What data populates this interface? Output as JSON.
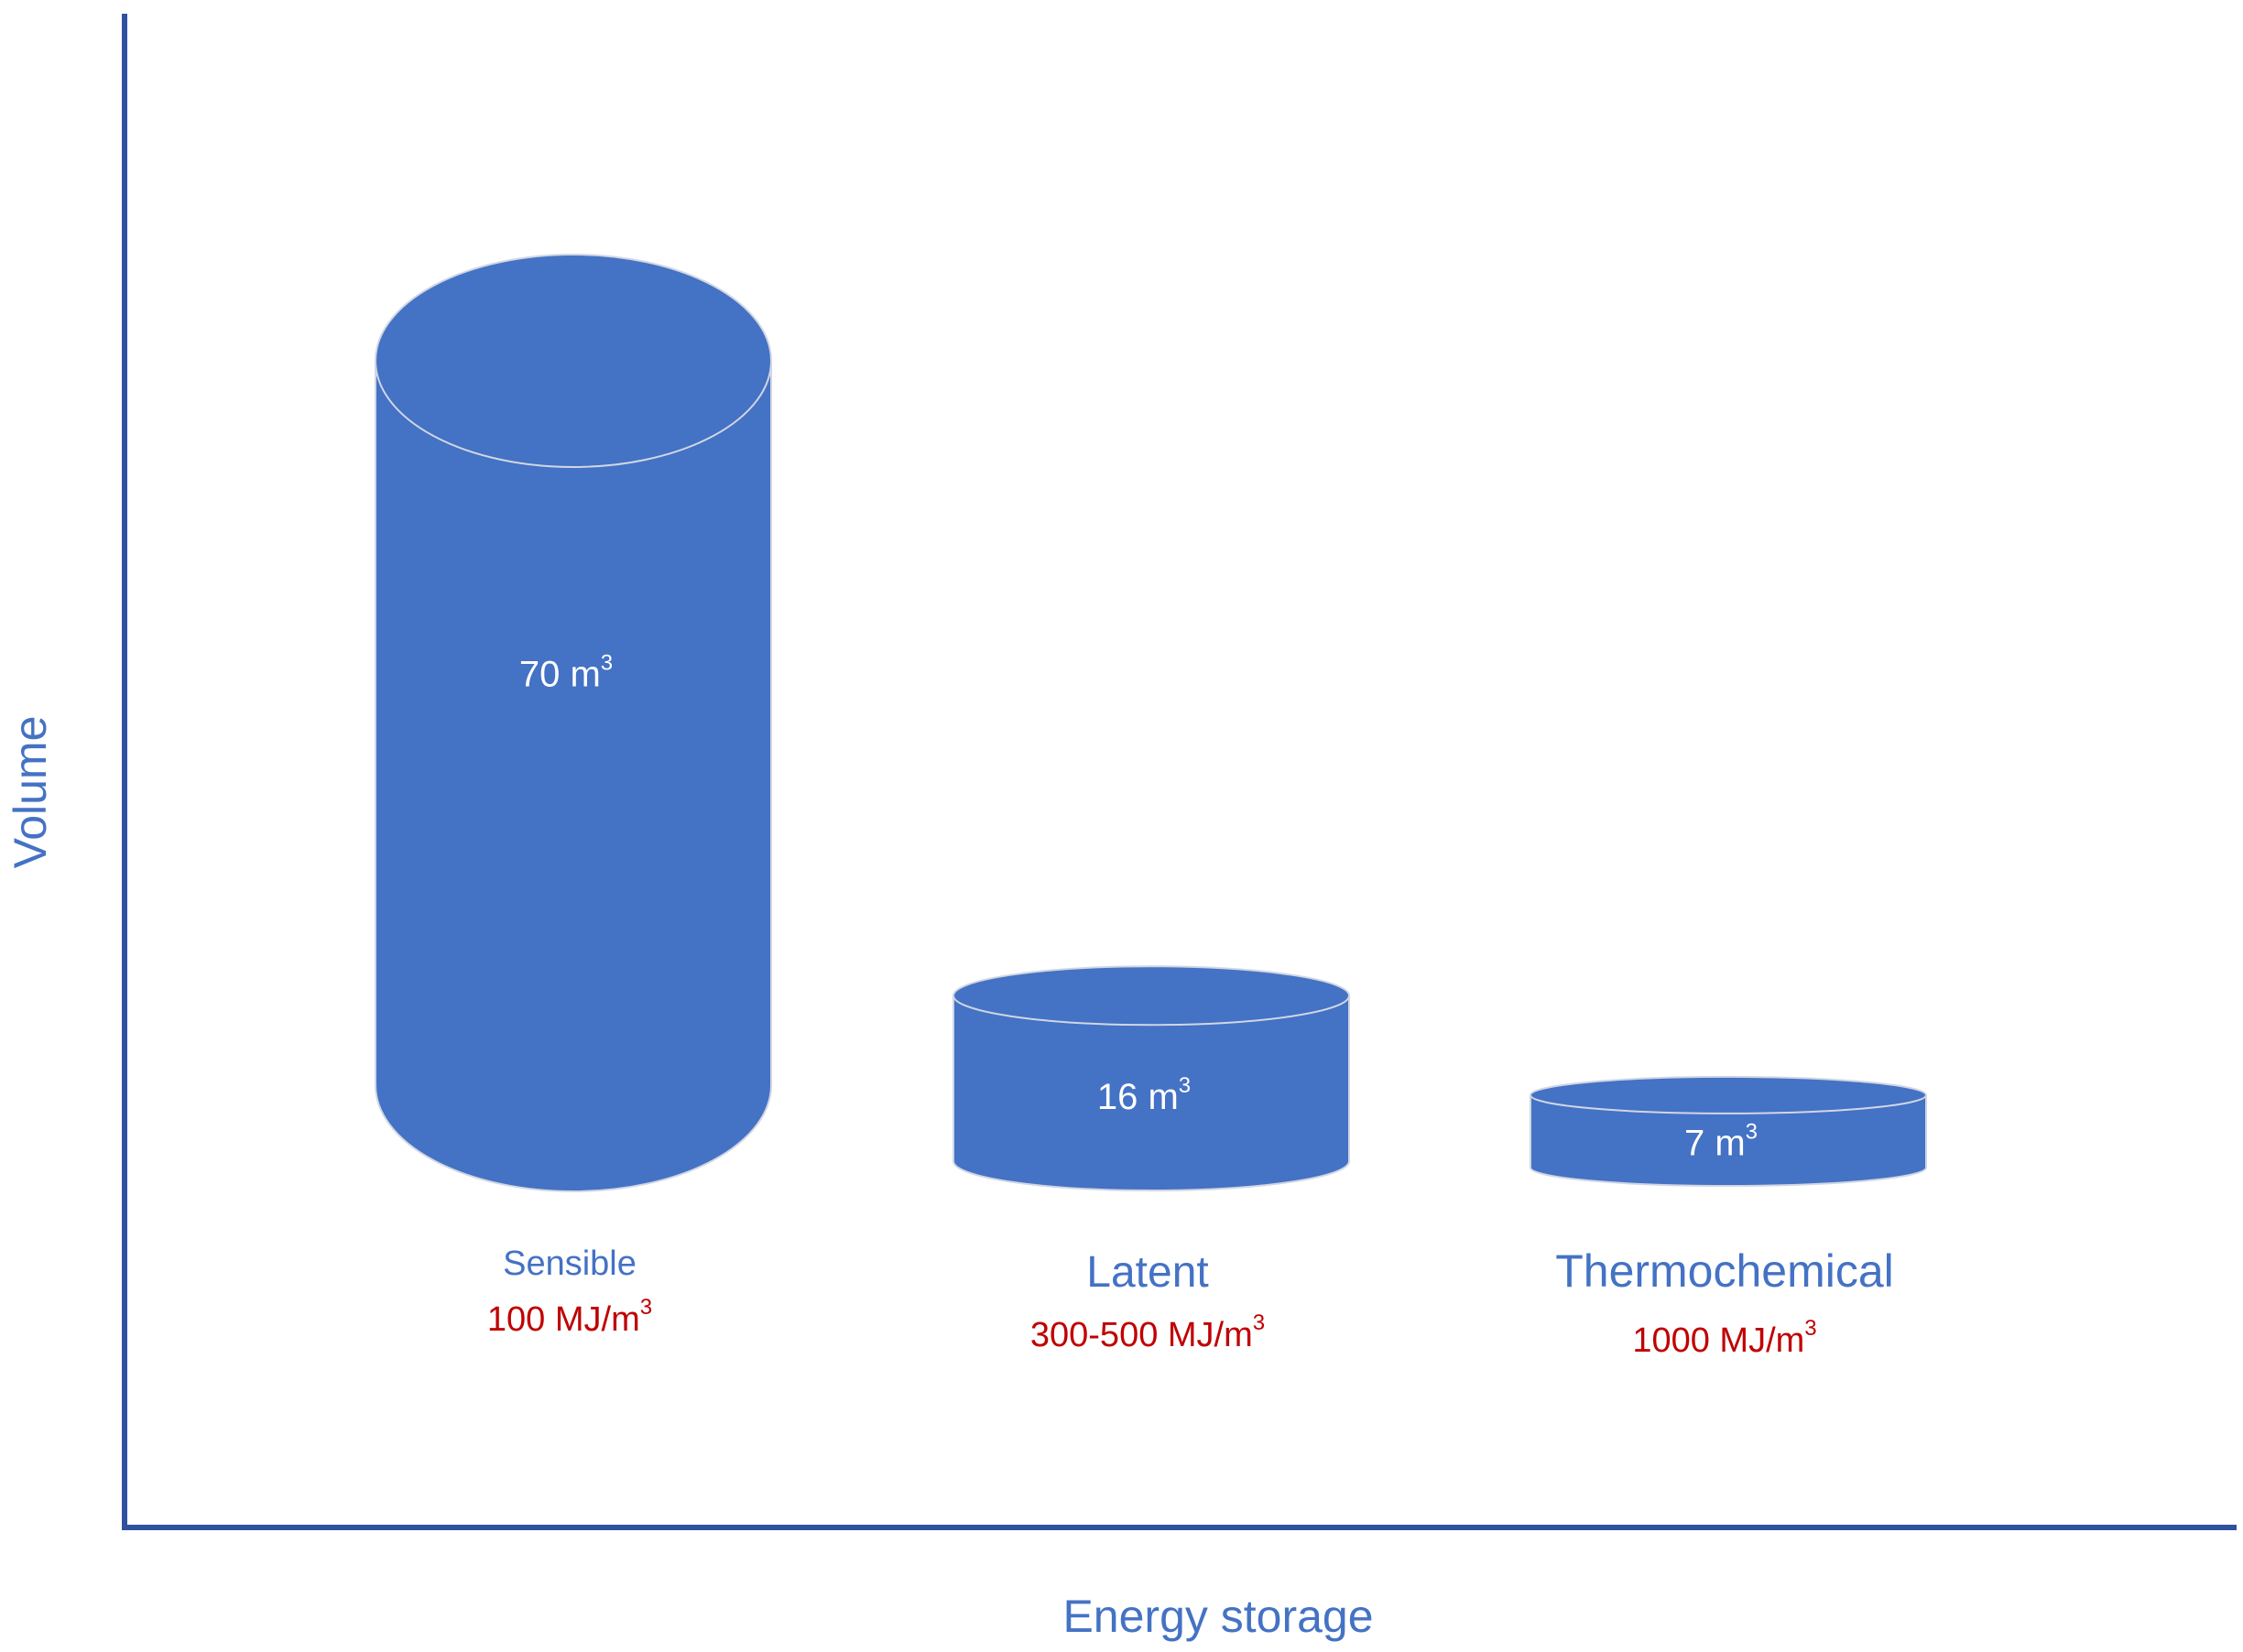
{
  "chart_data": {
    "type": "bar",
    "style": "3d-cylinder",
    "xlabel": "Energy storage",
    "ylabel": "Volume",
    "categories": [
      "Sensible",
      "Latent",
      "Thermochemical"
    ],
    "values": [
      70,
      16,
      7
    ],
    "value_labels": [
      {
        "value": "70 m",
        "sup": "3"
      },
      {
        "value": "16 m",
        "sup": "3"
      },
      {
        "value": "7 m",
        "sup": "3"
      }
    ],
    "energy_densities": [
      {
        "value": "100 MJ/m",
        "sup": "3"
      },
      {
        "value": "300-500 MJ/m",
        "sup": "3"
      },
      {
        "value": "1000 MJ/m",
        "sup": "3"
      }
    ],
    "grid": false,
    "legend": "none"
  },
  "colors": {
    "bar_fill": "#4472C4",
    "axis": "#2F52A0",
    "label_text": "#4472C4",
    "density_text": "#C00000",
    "value_text": "#FFFFFF"
  }
}
